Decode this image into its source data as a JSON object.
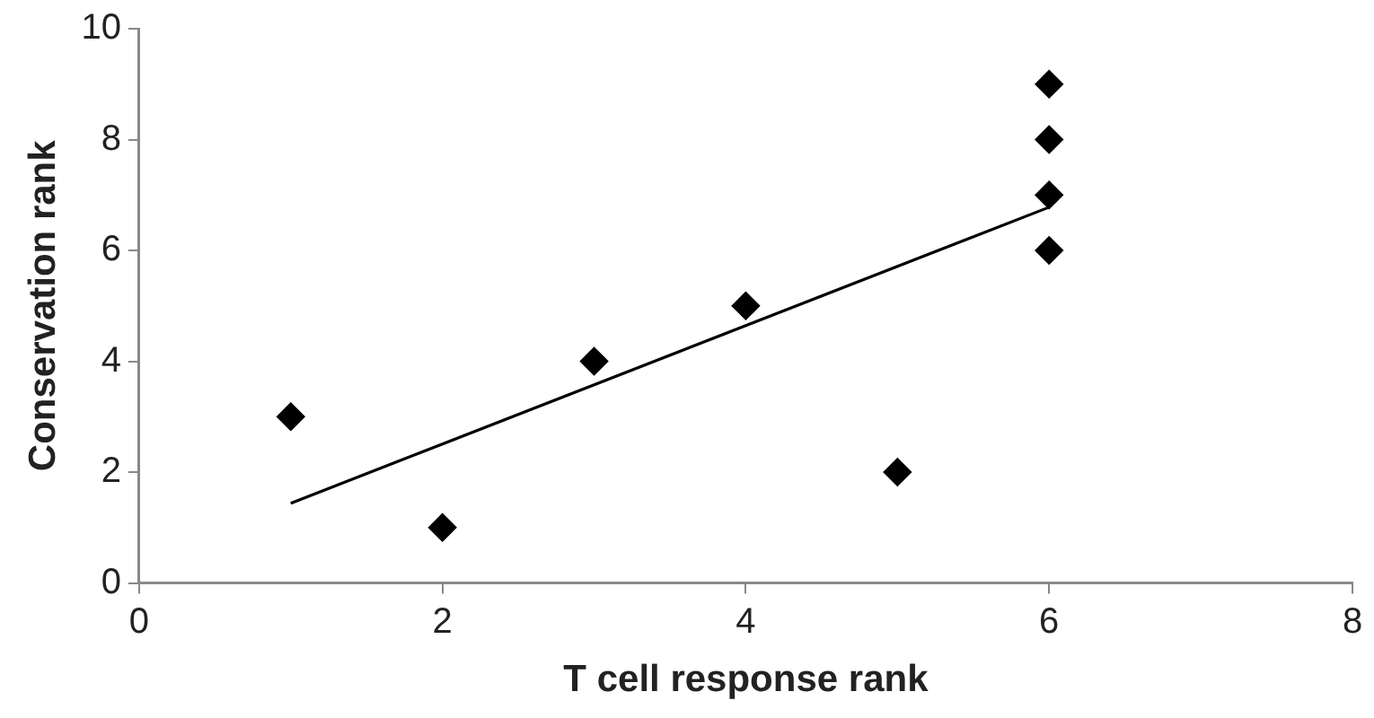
{
  "chart_data": {
    "type": "scatter",
    "xlabel": "T cell response rank",
    "ylabel": "Conservation rank",
    "x": [
      1,
      2,
      3,
      4,
      5,
      6,
      6,
      6,
      6
    ],
    "series": [
      {
        "type": "scatter",
        "color": "#000000",
        "marker": "diamond",
        "values": [
          3,
          1,
          4,
          5,
          2,
          6,
          7,
          8,
          9
        ]
      },
      {
        "type": "line",
        "color": "#000000",
        "marker": "none",
        "x": [
          1,
          6
        ],
        "values": [
          1.44,
          6.78
        ]
      }
    ],
    "xlim": [
      0,
      8
    ],
    "xticks": [
      0,
      2,
      4,
      6,
      8
    ],
    "ylim": [
      0,
      10
    ],
    "yticks": [
      0,
      2,
      4,
      6,
      8,
      10
    ],
    "grid": false,
    "legend": false
  }
}
